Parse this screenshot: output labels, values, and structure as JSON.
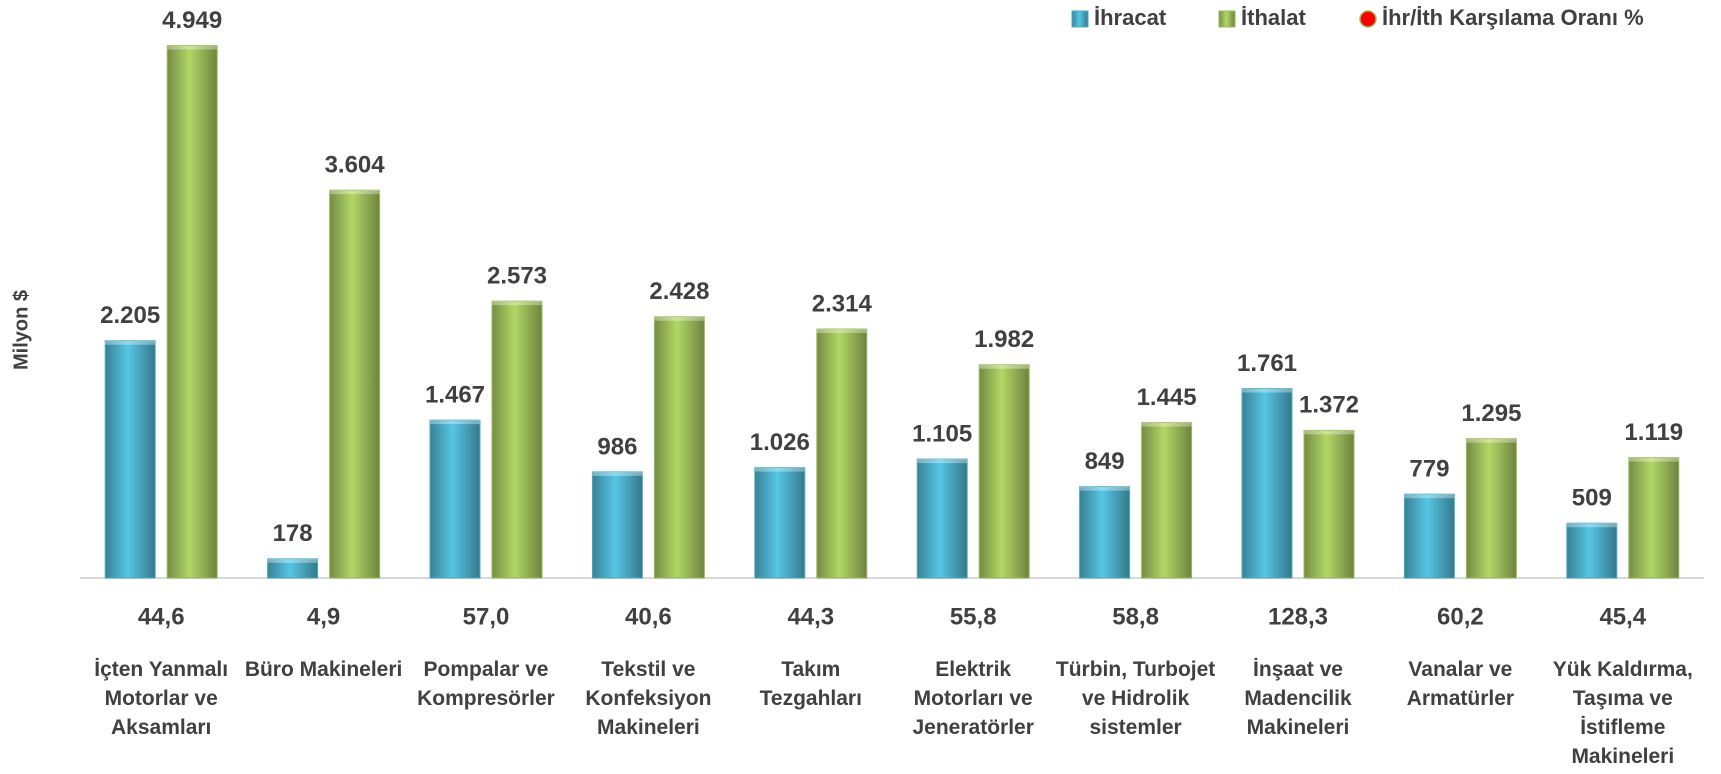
{
  "chart_data": {
    "type": "bar",
    "y_label": "Milyon $",
    "categories": [
      "İçten Yanmalı Motorlar ve Aksamları",
      "Büro Makineleri",
      "Pompalar ve Kompresörler",
      "Tekstil ve Konfeksiyon Makineleri",
      "Takım Tezgahları",
      "Elektrik Motorları ve Jeneratörler",
      "Türbin, Turbojet ve Hidrolik sistemler",
      "İnşaat ve Madencilik Makineleri",
      "Vanalar ve Armatürler",
      "Yük Kaldırma, Taşıma ve İstifleme Makineleri"
    ],
    "series": [
      {
        "name": "İhracat",
        "color": "#4bacc6",
        "values": [
          2205,
          178,
          1467,
          986,
          1026,
          1105,
          849,
          1761,
          779,
          509
        ],
        "value_labels": [
          "2.205",
          "178",
          "1.467",
          "986",
          "1.026",
          "1.105",
          "849",
          "1.761",
          "779",
          "509"
        ]
      },
      {
        "name": "İthalat",
        "color": "#9bbb59",
        "values": [
          4949,
          3604,
          2573,
          2428,
          2314,
          1982,
          1445,
          1372,
          1295,
          1119
        ],
        "value_labels": [
          "4.949",
          "3.604",
          "2.573",
          "2.428",
          "2.314",
          "1.982",
          "1.445",
          "1.372",
          "1.295",
          "1.119"
        ]
      },
      {
        "name": "İhr/İth Karşılama Oranı %",
        "color": "#ff0000",
        "values": [
          44.6,
          4.9,
          57.0,
          40.6,
          44.3,
          55.8,
          58.8,
          128.3,
          60.2,
          45.4
        ],
        "value_labels": [
          "44,6",
          "4,9",
          "57,0",
          "40,6",
          "44,3",
          "55,8",
          "58,8",
          "128,3",
          "60,2",
          "45,4"
        ]
      }
    ],
    "ylim": [
      0,
      5000
    ],
    "legend": "top-right"
  }
}
